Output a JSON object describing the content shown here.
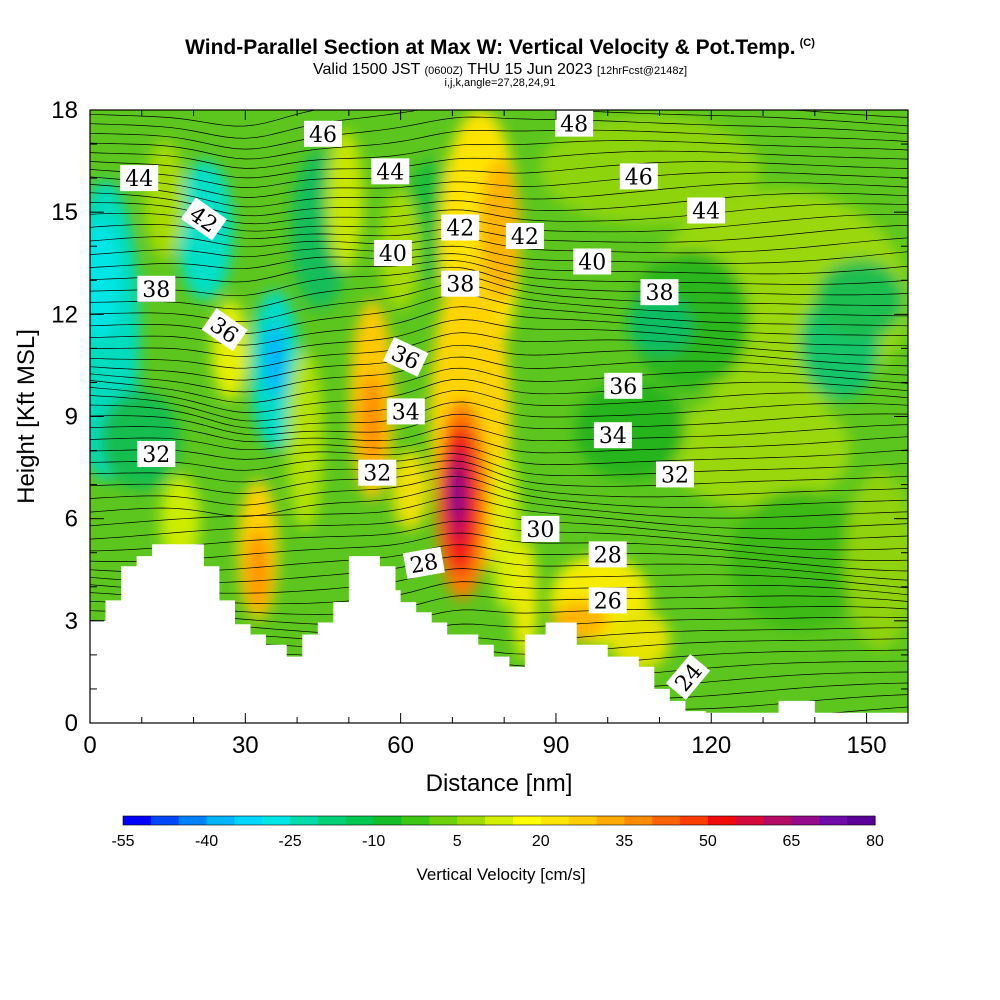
{
  "header": {
    "title": "Wind-Parallel Section at Max W: Vertical Velocity & Pot.Temp.",
    "copyright": "(C)",
    "valid_prefix": "Valid 1500 JST ",
    "valid_utc": "(0600Z)",
    "valid_date": " THU 15 Jun 2023 ",
    "forecast": "[12hrFcst@2148z]",
    "indices": "i,j,k,angle=27,28,24,91"
  },
  "chart_data": {
    "type": "heatmap",
    "xlabel": "Distance [nm]",
    "ylabel": "Height [Kft MSL]",
    "xlim": [
      0,
      158
    ],
    "ylim": [
      0,
      18
    ],
    "x_ticks": [
      0,
      30,
      60,
      90,
      120,
      150
    ],
    "y_ticks": [
      0,
      3,
      6,
      9,
      12,
      15,
      18
    ],
    "colorbar": {
      "title": "Vertical Velocity [cm/s]",
      "min": -55,
      "max": 80,
      "step": 5,
      "tick_labels": [
        "-55",
        "-40",
        "-25",
        "-10",
        "5",
        "20",
        "35",
        "50",
        "65",
        "80"
      ],
      "colors": [
        "#0000ff",
        "#0047ff",
        "#0082ff",
        "#00b4ff",
        "#00d7ff",
        "#00e6e6",
        "#00dcaa",
        "#00d278",
        "#00c850",
        "#14be28",
        "#3cc814",
        "#6ed20a",
        "#a0dc00",
        "#d2f000",
        "#ffff00",
        "#ffe600",
        "#ffcd00",
        "#ffaa00",
        "#ff8c00",
        "#ff6400",
        "#ff3c00",
        "#f00a0a",
        "#d70a3c",
        "#b40a64",
        "#960a8c",
        "#6e0aaa",
        "#5a0096"
      ]
    },
    "theta_contour_labels": [
      {
        "text": "44",
        "x": 9.5,
        "y": 16.0,
        "angle": 0
      },
      {
        "text": "46",
        "x": 45,
        "y": 17.3,
        "angle": 0
      },
      {
        "text": "48",
        "x": 93.5,
        "y": 17.6,
        "angle": 0
      },
      {
        "text": "44",
        "x": 58,
        "y": 16.2,
        "angle": 0
      },
      {
        "text": "46",
        "x": 106,
        "y": 16.05,
        "angle": 0
      },
      {
        "text": "42",
        "x": 22,
        "y": 14.8,
        "angle": 35
      },
      {
        "text": "42",
        "x": 71.5,
        "y": 14.55,
        "angle": 0
      },
      {
        "text": "42",
        "x": 84,
        "y": 14.3,
        "angle": 0
      },
      {
        "text": "44",
        "x": 119,
        "y": 15.05,
        "angle": 0
      },
      {
        "text": "40",
        "x": 58.5,
        "y": 13.8,
        "angle": 0
      },
      {
        "text": "40",
        "x": 97,
        "y": 13.55,
        "angle": 0
      },
      {
        "text": "38",
        "x": 12.8,
        "y": 12.75,
        "angle": 0
      },
      {
        "text": "38",
        "x": 71.5,
        "y": 12.9,
        "angle": 0
      },
      {
        "text": "38",
        "x": 110,
        "y": 12.65,
        "angle": 0
      },
      {
        "text": "36",
        "x": 26,
        "y": 11.55,
        "angle": 35
      },
      {
        "text": "36",
        "x": 61,
        "y": 10.75,
        "angle": 25
      },
      {
        "text": "36",
        "x": 103,
        "y": 9.9,
        "angle": 0
      },
      {
        "text": "34",
        "x": 61,
        "y": 9.15,
        "angle": 0
      },
      {
        "text": "34",
        "x": 101,
        "y": 8.45,
        "angle": 0
      },
      {
        "text": "32",
        "x": 12.8,
        "y": 7.9,
        "angle": 0
      },
      {
        "text": "32",
        "x": 55.5,
        "y": 7.35,
        "angle": 0
      },
      {
        "text": "32",
        "x": 113,
        "y": 7.3,
        "angle": 0
      },
      {
        "text": "30",
        "x": 87,
        "y": 5.7,
        "angle": 0
      },
      {
        "text": "28",
        "x": 64.5,
        "y": 4.7,
        "angle": -10
      },
      {
        "text": "28",
        "x": 100,
        "y": 4.95,
        "angle": 0
      },
      {
        "text": "26",
        "x": 100,
        "y": 3.6,
        "angle": 0
      },
      {
        "text": "24",
        "x": 115.5,
        "y": 1.35,
        "angle": -50
      }
    ],
    "terrain_height_kft": [
      [
        0,
        3.0
      ],
      [
        3,
        3.0
      ],
      [
        3,
        3.6
      ],
      [
        6,
        3.6
      ],
      [
        6,
        4.6
      ],
      [
        9,
        4.6
      ],
      [
        9,
        4.9
      ],
      [
        12,
        4.9
      ],
      [
        12,
        5.25
      ],
      [
        22,
        5.25
      ],
      [
        22,
        4.6
      ],
      [
        25,
        4.6
      ],
      [
        25,
        3.6
      ],
      [
        28,
        3.6
      ],
      [
        28,
        2.9
      ],
      [
        31,
        2.9
      ],
      [
        31,
        2.6
      ],
      [
        34,
        2.6
      ],
      [
        34,
        2.3
      ],
      [
        38,
        2.3
      ],
      [
        38,
        1.95
      ],
      [
        41,
        1.95
      ],
      [
        41,
        2.6
      ],
      [
        44,
        2.6
      ],
      [
        44,
        2.95
      ],
      [
        47,
        2.95
      ],
      [
        47,
        3.55
      ],
      [
        50,
        3.55
      ],
      [
        50,
        4.9
      ],
      [
        56,
        4.9
      ],
      [
        56,
        4.6
      ],
      [
        59,
        4.6
      ],
      [
        59,
        3.9
      ],
      [
        60,
        3.9
      ],
      [
        60,
        3.55
      ],
      [
        63,
        3.55
      ],
      [
        63,
        3.25
      ],
      [
        66,
        3.25
      ],
      [
        66,
        2.95
      ],
      [
        69,
        2.95
      ],
      [
        69,
        2.6
      ],
      [
        75,
        2.6
      ],
      [
        75,
        2.3
      ],
      [
        78,
        2.3
      ],
      [
        78,
        1.95
      ],
      [
        81,
        1.95
      ],
      [
        81,
        1.65
      ],
      [
        84,
        1.65
      ],
      [
        84,
        2.6
      ],
      [
        88,
        2.6
      ],
      [
        88,
        2.95
      ],
      [
        94,
        2.95
      ],
      [
        94,
        2.3
      ],
      [
        100,
        2.3
      ],
      [
        100,
        1.95
      ],
      [
        106,
        1.95
      ],
      [
        106,
        1.65
      ],
      [
        109,
        1.65
      ],
      [
        109,
        1.0
      ],
      [
        112,
        1.0
      ],
      [
        112,
        0.65
      ],
      [
        115,
        0.65
      ],
      [
        115,
        0.35
      ],
      [
        119,
        0.35
      ],
      [
        119,
        0.3
      ],
      [
        133,
        0.3
      ],
      [
        133,
        0.65
      ],
      [
        140,
        0.65
      ],
      [
        140,
        0.3
      ],
      [
        158,
        0.3
      ],
      [
        158,
        0
      ]
    ]
  }
}
